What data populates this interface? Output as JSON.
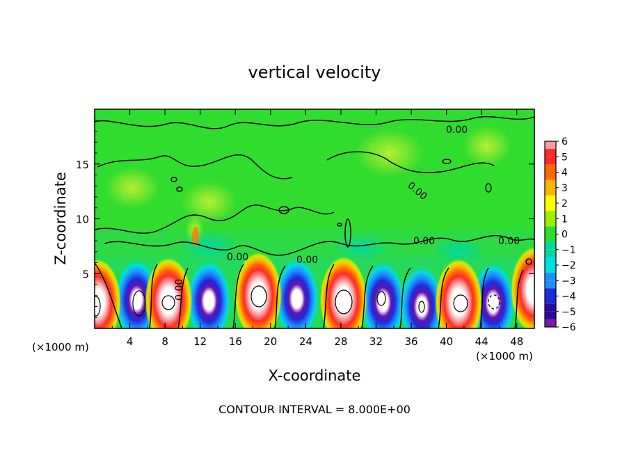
{
  "chart_data": {
    "type": "heatmap",
    "title": "vertical velocity",
    "xlabel": "X-coordinate",
    "ylabel": "Z-coordinate",
    "x_unit_left": "(×1000 m)",
    "x_unit_right": "(×1000 m)",
    "footer": "CONTOUR INTERVAL = 8.000E+00",
    "xlim": [
      0,
      50
    ],
    "ylim": [
      0,
      20
    ],
    "x_ticks": [
      4,
      8,
      12,
      16,
      20,
      24,
      28,
      32,
      36,
      40,
      44,
      48
    ],
    "y_ticks": [
      5,
      10,
      15
    ],
    "colorbar": {
      "levels": [
        6,
        5,
        4,
        3,
        2,
        1,
        0,
        -1,
        -2,
        -3,
        -4,
        -5,
        -6
      ],
      "colors": [
        "#f4a0a0",
        "#ff2a2a",
        "#ff6a00",
        "#ffb400",
        "#ffff00",
        "#9cf000",
        "#2ddc2d",
        "#00d99a",
        "#00dfe0",
        "#1f8fff",
        "#1c2cd8",
        "#2a0aa0",
        "#7a1ab0"
      ]
    },
    "contour_labels": [
      "0.00",
      "0.00",
      "0.00",
      "0.00",
      "0.00",
      "0.00",
      "0.00"
    ],
    "updraft_cells": [
      {
        "x": 0.3,
        "z": 2.4,
        "w": 8
      },
      {
        "x": 8.4,
        "z": 2.5,
        "w": 8
      },
      {
        "x": 18.6,
        "z": 3.0,
        "w": 8
      },
      {
        "x": 28.3,
        "z": 2.6,
        "w": 8
      },
      {
        "x": 41.4,
        "z": 2.4,
        "w": 8
      },
      {
        "x": 50.0,
        "z": 3.5,
        "w": 8
      }
    ],
    "downdraft_cells": [
      {
        "x": 4.8,
        "z": 2.6,
        "w": -6
      },
      {
        "x": 13.0,
        "z": 2.5,
        "w": -5
      },
      {
        "x": 23.0,
        "z": 2.7,
        "w": -5
      },
      {
        "x": 32.8,
        "z": 2.4,
        "w": -6
      },
      {
        "x": 37.2,
        "z": 2.0,
        "w": -6
      },
      {
        "x": 45.3,
        "z": 2.3,
        "w": -6
      }
    ]
  }
}
